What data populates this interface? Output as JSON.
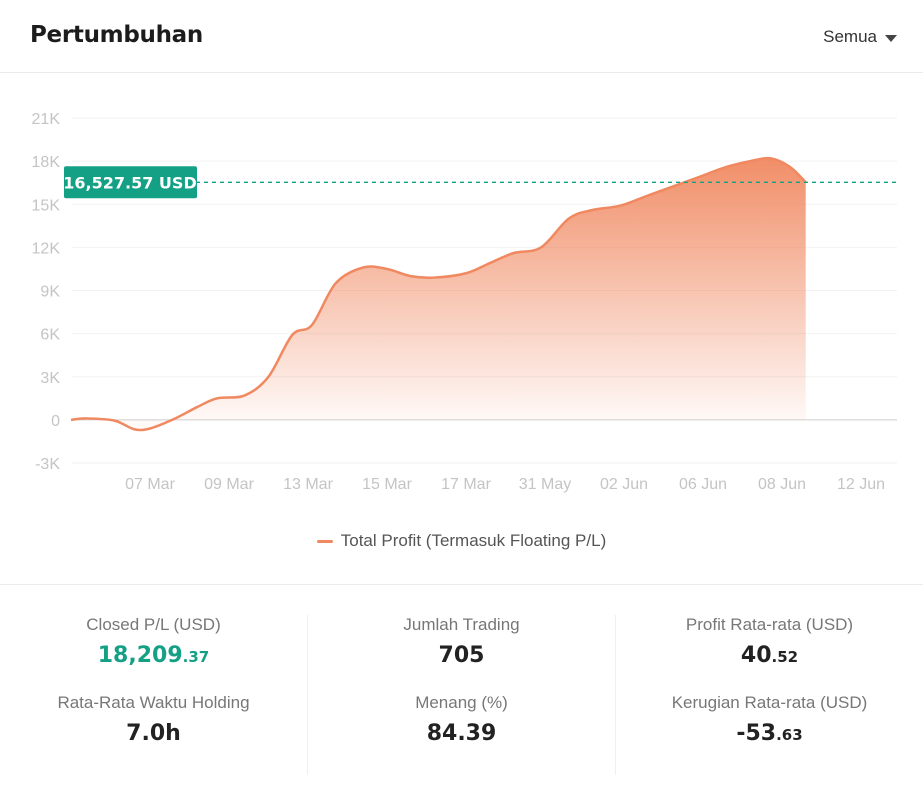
{
  "header": {
    "title": "Pertumbuhan",
    "filter_label": "Semua"
  },
  "chart_data": {
    "type": "area",
    "categories": [
      "07 Mar",
      "09 Mar",
      "13 Mar",
      "15 Mar",
      "17 Mar",
      "31 May",
      "02 Jun",
      "06 Jun",
      "08 Jun",
      "12 Jun"
    ],
    "y_ticks": [
      "21K",
      "18K",
      "15K",
      "12K",
      "9K",
      "6K",
      "3K",
      "0",
      "-3K"
    ],
    "ylim": [
      -3000,
      21000
    ],
    "grid": true,
    "legend_position": "bottom",
    "series": [
      {
        "name": "Total Profit (Termasuk Floating P/L)",
        "color": "#f08860",
        "x": [
          0,
          0.2,
          0.55,
          0.8,
          1.0,
          1.3,
          1.6,
          1.85,
          2.2,
          2.5,
          2.8,
          3.05,
          3.35,
          3.7,
          4.0,
          4.3,
          4.6,
          5.0,
          5.3,
          5.6,
          5.95,
          6.3,
          6.6,
          6.95,
          7.3,
          7.65,
          8.0,
          8.3,
          8.6,
          8.85,
          9.1,
          9.3
        ],
        "y": [
          0,
          100,
          -50,
          -650,
          -600,
          50,
          900,
          1500,
          1700,
          3000,
          5900,
          6600,
          9500,
          10600,
          10500,
          10000,
          9900,
          10200,
          10900,
          11600,
          12000,
          14000,
          14600,
          14900,
          15600,
          16300,
          17000,
          17600,
          18000,
          18200,
          17600,
          16527.57
        ]
      }
    ],
    "current_value_label": "16,527.57 USD",
    "current_value": 16527.57,
    "current_value_color": "#14a085"
  },
  "stats": [
    [
      {
        "label": "Closed P/L (USD)",
        "int": "18,209",
        "dec": ".37",
        "positive": true
      },
      {
        "label": "Rata-Rata Waktu Holding",
        "int": "7.0h",
        "dec": "",
        "positive": false
      }
    ],
    [
      {
        "label": "Jumlah Trading",
        "int": "705",
        "dec": "",
        "positive": false
      },
      {
        "label": "Menang (%)",
        "int": "84.39",
        "dec": "",
        "positive": false
      }
    ],
    [
      {
        "label": "Profit Rata-rata (USD)",
        "int": "40",
        "dec": ".52",
        "positive": false
      },
      {
        "label": "Kerugian Rata-rata (USD)",
        "int": "-53",
        "dec": ".63",
        "positive": false
      }
    ]
  ]
}
